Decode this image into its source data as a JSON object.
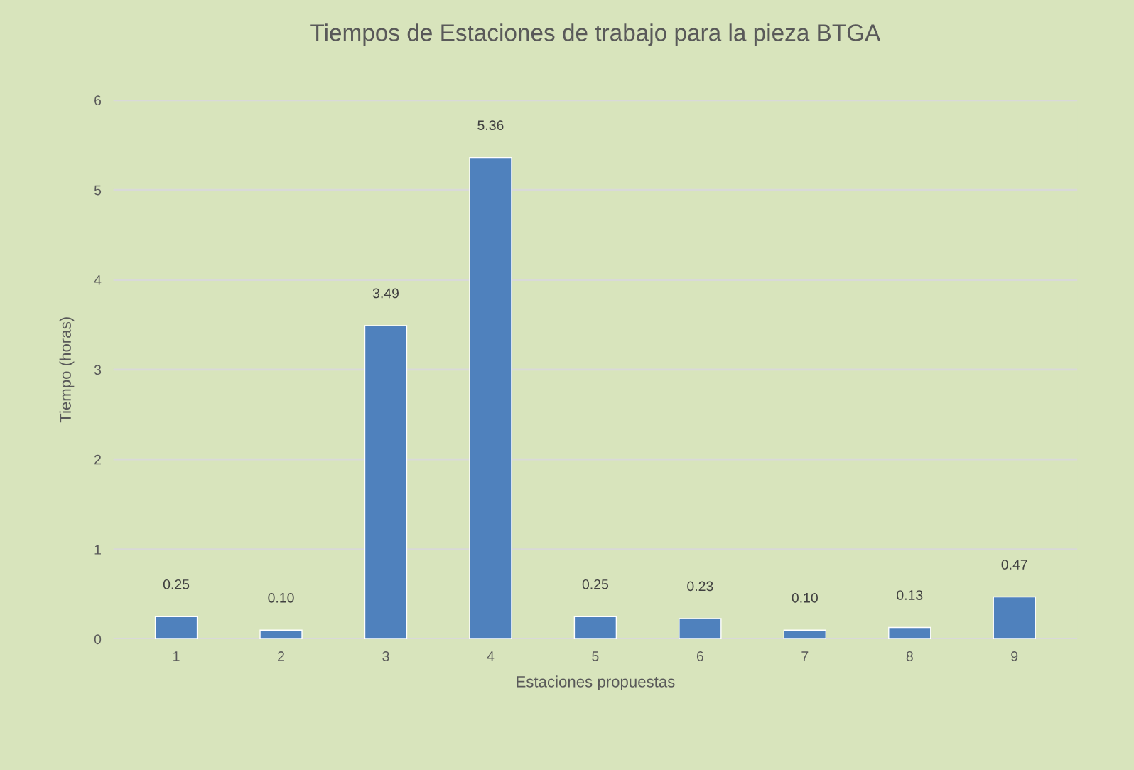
{
  "chart_data": {
    "type": "bar",
    "title": "Tiempos de Estaciones de trabajo para la pieza BTGA",
    "xlabel": "Estaciones propuestas",
    "ylabel": "Tiempo (horas)",
    "categories": [
      "1",
      "2",
      "3",
      "4",
      "5",
      "6",
      "7",
      "8",
      "9"
    ],
    "values": [
      0.25,
      0.1,
      3.49,
      5.36,
      0.25,
      0.23,
      0.1,
      0.13,
      0.47
    ],
    "value_labels": [
      "0.25",
      "0.10",
      "3.49",
      "5.36",
      "0.25",
      "0.23",
      "0.10",
      "0.13",
      "0.47"
    ],
    "color": "#4f81bd",
    "ylim": [
      0,
      6
    ],
    "yticks": [
      0,
      1,
      2,
      3,
      4,
      5,
      6
    ],
    "grid": "y",
    "legend": false
  }
}
